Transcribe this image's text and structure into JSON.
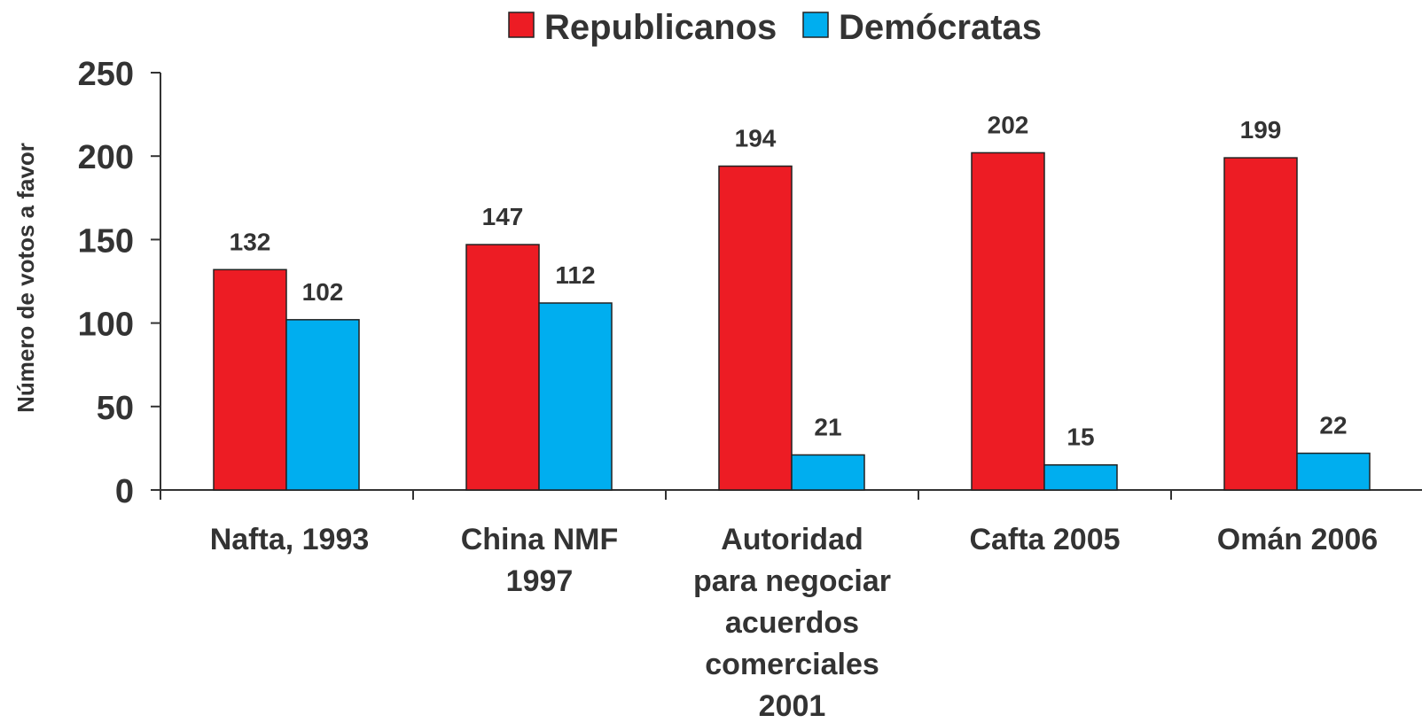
{
  "chart_data": {
    "type": "bar",
    "title": "",
    "xlabel": "",
    "ylabel": "Número de votos a favor",
    "ylim": [
      0,
      250
    ],
    "yticks": [
      0,
      50,
      100,
      150,
      200,
      250
    ],
    "grid": false,
    "legend_position": "top-center",
    "categories": [
      [
        "Nafta, 1993"
      ],
      [
        "China NMF",
        "1997"
      ],
      [
        "Autoridad",
        "para negociar",
        "acuerdos",
        "comerciales",
        "2001"
      ],
      [
        "Cafta 2005"
      ],
      [
        "Omán 2006"
      ]
    ],
    "series": [
      {
        "name": "Republicanos",
        "color": "#ED1C24",
        "values": [
          132,
          147,
          194,
          202,
          199
        ]
      },
      {
        "name": "Demócratas",
        "color": "#00AEEF",
        "values": [
          102,
          112,
          21,
          15,
          22
        ]
      }
    ]
  }
}
